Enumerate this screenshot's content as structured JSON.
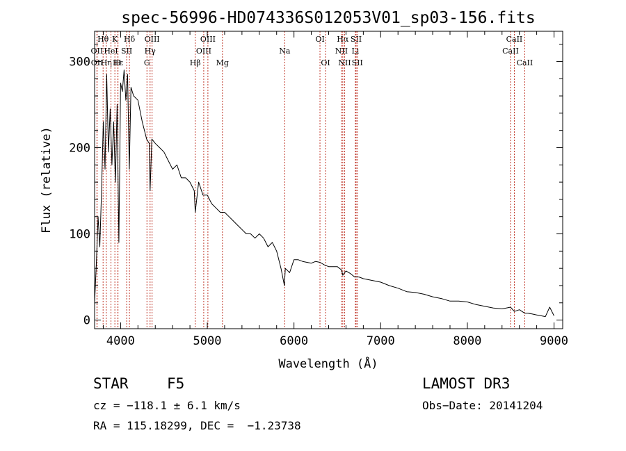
{
  "chart_data": {
    "type": "line",
    "title": "spec-56996-HD074336S012053V01_sp03-156.fits",
    "xlabel": "Wavelength (Å)",
    "ylabel": "Flux (relative)",
    "xlim": [
      3700,
      9100
    ],
    "ylim": [
      -10,
      335
    ],
    "x_ticks": [
      4000,
      5000,
      6000,
      7000,
      8000,
      9000
    ],
    "y_ticks": [
      0,
      100,
      200,
      300
    ],
    "grid": false,
    "series": [
      {
        "name": "spectrum",
        "x": [
          3700,
          3720,
          3740,
          3760,
          3780,
          3800,
          3820,
          3840,
          3860,
          3880,
          3900,
          3920,
          3940,
          3960,
          3980,
          4000,
          4020,
          4040,
          4060,
          4080,
          4100,
          4120,
          4150,
          4200,
          4250,
          4300,
          4330,
          4340,
          4360,
          4400,
          4450,
          4500,
          4550,
          4600,
          4650,
          4700,
          4750,
          4800,
          4850,
          4861,
          4900,
          4950,
          5000,
          5050,
          5100,
          5150,
          5200,
          5250,
          5300,
          5350,
          5400,
          5450,
          5500,
          5550,
          5600,
          5650,
          5700,
          5750,
          5800,
          5850,
          5890,
          5900,
          5950,
          6000,
          6050,
          6100,
          6150,
          6200,
          6250,
          6300,
          6350,
          6400,
          6450,
          6500,
          6550,
          6563,
          6600,
          6650,
          6700,
          6750,
          6800,
          6850,
          6900,
          6950,
          7000,
          7100,
          7200,
          7300,
          7400,
          7500,
          7600,
          7700,
          7800,
          7900,
          8000,
          8100,
          8200,
          8300,
          8400,
          8498,
          8542,
          8600,
          8662,
          8700,
          8750,
          8800,
          8850,
          8900,
          8950,
          9000
        ],
        "y": [
          20,
          65,
          120,
          85,
          150,
          230,
          175,
          285,
          195,
          245,
          180,
          230,
          160,
          250,
          90,
          275,
          265,
          290,
          255,
          285,
          175,
          270,
          260,
          255,
          230,
          210,
          205,
          150,
          210,
          205,
          200,
          195,
          185,
          175,
          180,
          165,
          165,
          160,
          150,
          125,
          160,
          145,
          145,
          135,
          130,
          125,
          125,
          120,
          115,
          110,
          105,
          100,
          100,
          95,
          100,
          95,
          85,
          90,
          80,
          60,
          40,
          60,
          55,
          70,
          70,
          68,
          67,
          66,
          68,
          67,
          64,
          62,
          62,
          62,
          58,
          52,
          57,
          54,
          50,
          50,
          48,
          47,
          46,
          45,
          44,
          40,
          37,
          33,
          32,
          30,
          27,
          25,
          22,
          22,
          21,
          18,
          16,
          14,
          13,
          15,
          10,
          12,
          8,
          8,
          7,
          6,
          5,
          4,
          15,
          5
        ]
      }
    ],
    "lines": [
      {
        "label": "Hθ",
        "x": 3798,
        "row": 0
      },
      {
        "label": "OII",
        "x": 3727,
        "row": 1
      },
      {
        "label": "OII",
        "x": 3729,
        "row": 2
      },
      {
        "label": "Hη",
        "x": 3835,
        "row": 2
      },
      {
        "label": "HeI",
        "x": 3889,
        "row": 1
      },
      {
        "label": "Hε",
        "x": 3970,
        "row": 2
      },
      {
        "label": "K",
        "x": 3934,
        "row": 0
      },
      {
        "label": "SII",
        "x": 4070,
        "row": 1
      },
      {
        "label": "Hδ",
        "x": 4102,
        "row": 0
      },
      {
        "label": "H",
        "x": 3968,
        "row": 2
      },
      {
        "label": "OIII",
        "x": 4363,
        "row": 0
      },
      {
        "label": "Hγ",
        "x": 4340,
        "row": 1
      },
      {
        "label": "G",
        "x": 4304,
        "row": 2
      },
      {
        "label": "Hβ",
        "x": 4861,
        "row": 2
      },
      {
        "label": "OIII",
        "x": 5007,
        "row": 0
      },
      {
        "label": "OIII",
        "x": 4959,
        "row": 1
      },
      {
        "label": "Mg",
        "x": 5175,
        "row": 2
      },
      {
        "label": "Na",
        "x": 5893,
        "row": 1
      },
      {
        "label": "OI",
        "x": 6300,
        "row": 0
      },
      {
        "label": "OI",
        "x": 6364,
        "row": 2
      },
      {
        "label": "Hα",
        "x": 6563,
        "row": 0
      },
      {
        "label": "NII",
        "x": 6548,
        "row": 1
      },
      {
        "label": "NII",
        "x": 6584,
        "row": 2
      },
      {
        "label": "SII",
        "x": 6717,
        "row": 0
      },
      {
        "label": "Li",
        "x": 6708,
        "row": 1
      },
      {
        "label": "SII",
        "x": 6731,
        "row": 2
      },
      {
        "label": "CaII",
        "x": 8542,
        "row": 0
      },
      {
        "label": "CaII",
        "x": 8498,
        "row": 1
      },
      {
        "label": "CaII",
        "x": 8662,
        "row": 2
      }
    ]
  },
  "info": {
    "type": "STAR",
    "subclass": "F5",
    "survey": "LAMOST DR3",
    "cz": "cz = −118.1 ± 6.1 km/s",
    "obs_date": "Obs−Date: 20141204",
    "radec": "RA = 115.18299, DEC =  −1.23738"
  },
  "colors": {
    "line_marker": "#c0392b",
    "spectrum": "#000000",
    "axis": "#000000"
  }
}
